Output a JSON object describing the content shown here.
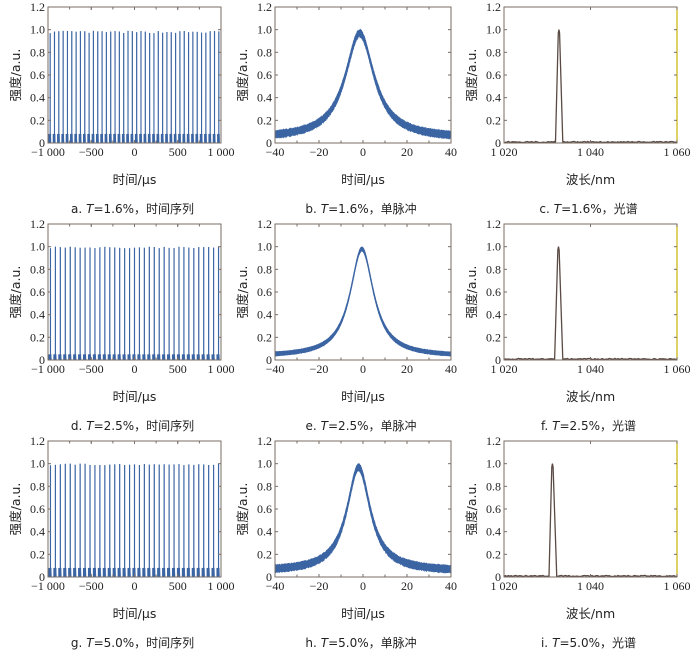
{
  "colors": {
    "pulse": "#3b64a3",
    "pulse_light": "#9db6d8",
    "spectrum": "#5a4a44",
    "frame": "#7a6e66",
    "frame_right_spectrum": "#c8b400"
  },
  "chart_data": [
    {
      "id": "a",
      "type": "line",
      "title": "",
      "caption_letter": "a.",
      "caption_T": "T",
      "caption_value": "=1.6%，时间序列",
      "xlabel": "时间/μs",
      "ylabel": "强度/a.u.",
      "xlim": [
        -1000,
        1000
      ],
      "ylim": [
        0,
        1.2
      ],
      "xticks": [
        "−1 000",
        "−500",
        "0",
        "500",
        "1 000"
      ],
      "xtick_values": [
        -1000,
        -500,
        0,
        500,
        1000
      ],
      "yticks": [
        "0",
        "0.2",
        "0.4",
        "0.6",
        "0.8",
        "1.0",
        "1.2"
      ],
      "ytick_values": [
        0,
        0.2,
        0.4,
        0.6,
        0.8,
        1.0,
        1.2
      ],
      "kind": "pulse_train",
      "pulse_count": 40,
      "baseline": 0.08,
      "peak_min": 0.96,
      "peak_max": 0.99
    },
    {
      "id": "b",
      "type": "line",
      "title": "",
      "caption_letter": "b.",
      "caption_T": "T",
      "caption_value": "=1.6%，单脉冲",
      "xlabel": "时间/μs",
      "ylabel": "强度/a.u.",
      "xlim": [
        -40,
        40
      ],
      "ylim": [
        0,
        1.2
      ],
      "xticks": [
        "−40",
        "−20",
        "0",
        "20",
        "40"
      ],
      "xtick_values": [
        -40,
        -20,
        0,
        20,
        40
      ],
      "yticks": [
        "0",
        "0.2",
        "0.4",
        "0.6",
        "0.8",
        "1.0",
        "1.2"
      ],
      "ytick_values": [
        0,
        0.2,
        0.4,
        0.6,
        0.8,
        1.0,
        1.2
      ],
      "kind": "single_pulse",
      "center": -1.5,
      "width": 8,
      "peak": 0.97,
      "baseline": 0.04,
      "noise": 0.05
    },
    {
      "id": "c",
      "type": "line",
      "title": "",
      "caption_letter": "c.",
      "caption_T": "T",
      "caption_value": "=1.6%，光谱",
      "xlabel": "波长/nm",
      "ylabel": "强度/a.u.",
      "xlim": [
        1020,
        1060
      ],
      "ylim": [
        0,
        1.2
      ],
      "xticks": [
        "1 020",
        "1 040",
        "1 060"
      ],
      "xtick_values": [
        1020,
        1040,
        1060
      ],
      "yticks": [
        "0",
        "0.2",
        "0.4",
        "0.6",
        "0.8",
        "1.0",
        "1.2"
      ],
      "ytick_values": [
        0,
        0.2,
        0.4,
        0.6,
        0.8,
        1.0,
        1.2
      ],
      "kind": "spectrum",
      "peak_x": 1032.7,
      "peak_y": 1.0,
      "base_left": 1031.9,
      "base_right": 1033.6
    },
    {
      "id": "d",
      "type": "line",
      "title": "",
      "caption_letter": "d.",
      "caption_T": "T",
      "caption_value": "=2.5%，时间序列",
      "xlabel": "时间/μs",
      "ylabel": "强度/a.u.",
      "xlim": [
        -1000,
        1000
      ],
      "ylim": [
        0,
        1.2
      ],
      "xticks": [
        "−1 000",
        "−500",
        "0",
        "500",
        "1 000"
      ],
      "xtick_values": [
        -1000,
        -500,
        0,
        500,
        1000
      ],
      "yticks": [
        "0",
        "0.2",
        "0.4",
        "0.6",
        "0.8",
        "1.0",
        "1.2"
      ],
      "ytick_values": [
        0,
        0.2,
        0.4,
        0.6,
        0.8,
        1.0,
        1.2
      ],
      "kind": "pulse_train",
      "pulse_count": 35,
      "baseline": 0.05,
      "peak_min": 0.98,
      "peak_max": 1.0
    },
    {
      "id": "e",
      "type": "line",
      "title": "",
      "caption_letter": "e.",
      "caption_T": "T",
      "caption_value": "=2.5%，单脉冲",
      "xlabel": "时间/μs",
      "ylabel": "强度/a.u.",
      "xlim": [
        -40,
        40
      ],
      "ylim": [
        0,
        1.2
      ],
      "xticks": [
        "−40",
        "−20",
        "0",
        "20",
        "40"
      ],
      "xtick_values": [
        -40,
        -20,
        0,
        20,
        40
      ],
      "yticks": [
        "0",
        "0.2",
        "0.4",
        "0.6",
        "0.8",
        "1.0",
        "1.2"
      ],
      "ytick_values": [
        0,
        0.2,
        0.4,
        0.6,
        0.8,
        1.0,
        1.2
      ],
      "kind": "single_pulse",
      "center": -0.5,
      "width": 6.5,
      "peak": 0.98,
      "baseline": 0.03,
      "noise": 0.02
    },
    {
      "id": "f",
      "type": "line",
      "title": "",
      "caption_letter": "f.",
      "caption_T": "T",
      "caption_value": "=2.5%，光谱",
      "xlabel": "波长/nm",
      "ylabel": "强度/a.u.",
      "xlim": [
        1020,
        1060
      ],
      "ylim": [
        0,
        1.2
      ],
      "xticks": [
        "1 020",
        "1 040",
        "1 060"
      ],
      "xtick_values": [
        1020,
        1040,
        1060
      ],
      "yticks": [
        "0",
        "0.2",
        "0.4",
        "0.6",
        "0.8",
        "1.0",
        "1.2"
      ],
      "ytick_values": [
        0,
        0.2,
        0.4,
        0.6,
        0.8,
        1.0,
        1.2
      ],
      "kind": "spectrum",
      "peak_x": 1032.6,
      "peak_y": 1.0,
      "base_left": 1031.7,
      "base_right": 1033.6
    },
    {
      "id": "g",
      "type": "line",
      "title": "",
      "caption_letter": "g.",
      "caption_T": "T",
      "caption_value": "=5.0%，时间序列",
      "xlabel": "时间/μs",
      "ylabel": "强度/a.u.",
      "xlim": [
        -1000,
        1000
      ],
      "ylim": [
        0,
        1.2
      ],
      "xticks": [
        "−1 000",
        "−500",
        "0",
        "500",
        "1 000"
      ],
      "xtick_values": [
        -1000,
        -500,
        0,
        500,
        1000
      ],
      "yticks": [
        "0",
        "0.2",
        "0.4",
        "0.6",
        "0.8",
        "1.0",
        "1.2"
      ],
      "ytick_values": [
        0,
        0.2,
        0.4,
        0.6,
        0.8,
        1.0,
        1.2
      ],
      "kind": "pulse_train",
      "pulse_count": 35,
      "baseline": 0.08,
      "peak_min": 0.98,
      "peak_max": 1.0
    },
    {
      "id": "h",
      "type": "line",
      "title": "",
      "caption_letter": "h.",
      "caption_T": "T",
      "caption_value": "=5.0%，单脉冲",
      "xlabel": "时间/μs",
      "ylabel": "强度/a.u.",
      "xlim": [
        -40,
        40
      ],
      "ylim": [
        0,
        1.2
      ],
      "xticks": [
        "−40",
        "−20",
        "0",
        "20",
        "40"
      ],
      "xtick_values": [
        -40,
        -20,
        0,
        20,
        40
      ],
      "yticks": [
        "0",
        "0.2",
        "0.4",
        "0.6",
        "0.8",
        "1.0",
        "1.2"
      ],
      "ytick_values": [
        0,
        0.2,
        0.4,
        0.6,
        0.8,
        1.0,
        1.2
      ],
      "kind": "single_pulse",
      "center": -2,
      "width": 6.5,
      "peak": 0.97,
      "baseline": 0.05,
      "noise": 0.05
    },
    {
      "id": "i",
      "type": "line",
      "title": "",
      "caption_letter": "i.",
      "caption_T": "T",
      "caption_value": "=5.0%，光谱",
      "xlabel": "波长/nm",
      "ylabel": "强度/a.u.",
      "xlim": [
        1020,
        1060
      ],
      "ylim": [
        0,
        1.2
      ],
      "xticks": [
        "1 020",
        "1 040",
        "1 060"
      ],
      "xtick_values": [
        1020,
        1040,
        1060
      ],
      "yticks": [
        "0",
        "0.2",
        "0.4",
        "0.6",
        "0.8",
        "1.0",
        "1.2"
      ],
      "ytick_values": [
        0,
        0.2,
        0.4,
        0.6,
        0.8,
        1.0,
        1.2
      ],
      "kind": "spectrum",
      "peak_x": 1031.2,
      "peak_y": 1.0,
      "base_left": 1030.4,
      "base_right": 1032.2
    }
  ]
}
